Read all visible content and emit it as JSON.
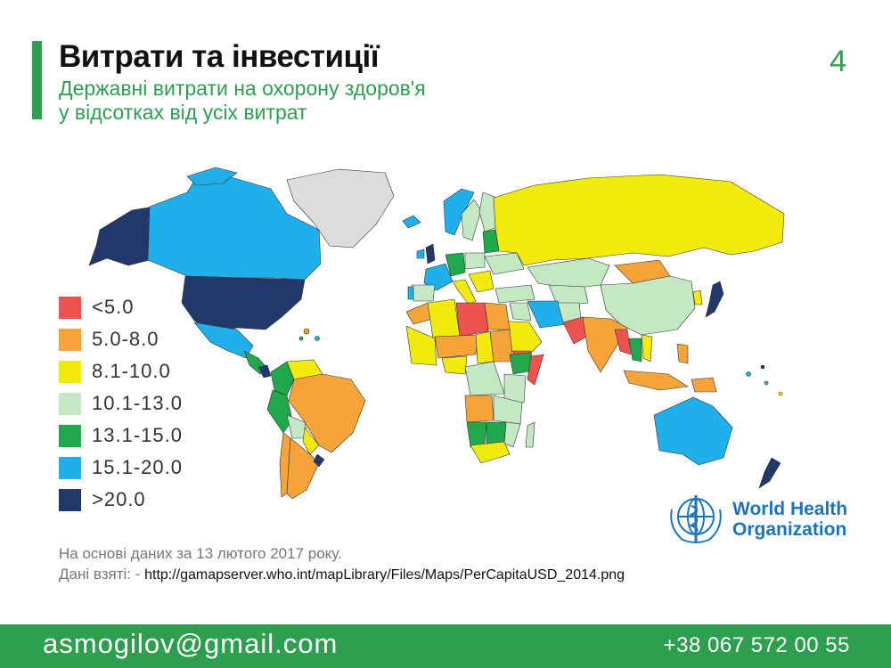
{
  "slide": {
    "title": "Витрати та інвестиції",
    "subtitle_line1": "Державні витрати на охорону здоров'я",
    "subtitle_line2": "у відсотках від усіх витрат",
    "page_number": "4"
  },
  "legend": [
    {
      "label": "<5.0",
      "color": "#ef5350"
    },
    {
      "label": "5.0-8.0",
      "color": "#f6a33a"
    },
    {
      "label": "8.1-10.0",
      "color": "#f2ea0c"
    },
    {
      "label": "10.1-13.0",
      "color": "#c4e8c4"
    },
    {
      "label": "13.1-15.0",
      "color": "#1fa84c"
    },
    {
      "label": "15.1-20.0",
      "color": "#1fb0ec"
    },
    {
      "label": ">20.0",
      "color": "#22386b"
    }
  ],
  "map_colors": {
    "no_data": "#dcdcdc",
    "water": "#ffffff",
    "border": "#333333"
  },
  "who": {
    "line1": "World Health",
    "line2": "Organization",
    "color": "#1a75bc"
  },
  "source": {
    "line1": "На основі даних за 13 лютого 2017 року.",
    "line2_prefix": "Дані взяті: - ",
    "url": "http://gamapserver.who.int/mapLibrary/Files/Maps/PerCapitaUSD_2014.png"
  },
  "footer": {
    "email": "asmogilov@gmail.com",
    "phone": "+38 067 572 00 55",
    "color": "#2e9e4f"
  }
}
